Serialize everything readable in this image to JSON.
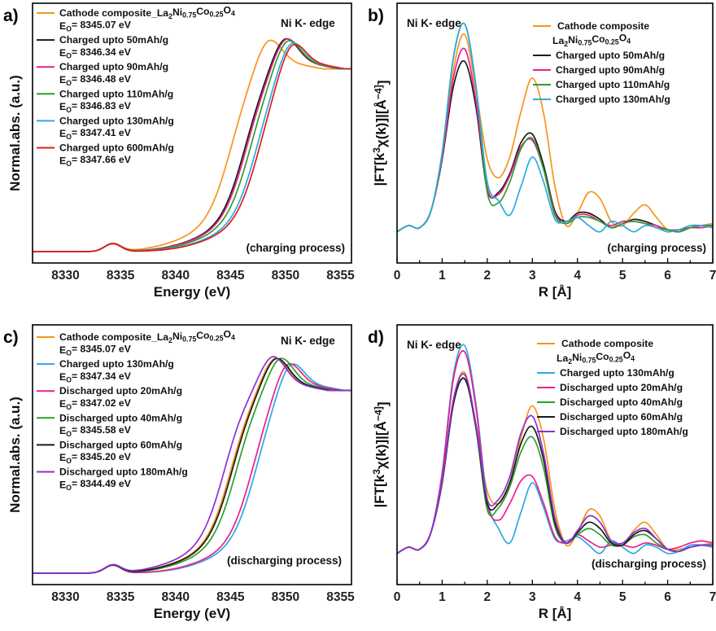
{
  "chart_data": [
    {
      "type": "line",
      "panel": "a)",
      "edge_label": "Ni K- edge",
      "annotation": "(charging process)",
      "xlabel": "Energy (eV)",
      "ylabel": "Normal.abs. (a.u.)",
      "xlim": [
        8327,
        8356
      ],
      "x_ticks": [
        8330,
        8335,
        8340,
        8345,
        8350,
        8355
      ],
      "ylim": [
        -0.05,
        1.1
      ],
      "legend_position": "top-left",
      "series": [
        {
          "name": "Cathode composite_La2Ni0.75Co0.25O4",
          "e0": "EO= 8345.07 eV",
          "color": "#f7941d",
          "edge": 8345.07,
          "peak": 8348.4,
          "prepeak": 1.0
        },
        {
          "name": "Charged upto 50mAh/g",
          "e0": "EO= 8346.34 eV",
          "color": "#1a1a1a",
          "edge": 8346.34,
          "peak": 8349.9,
          "prepeak": 1.0
        },
        {
          "name": "Charged upto 90mAh/g",
          "e0": "EO= 8346.48 eV",
          "color": "#ec1f8c",
          "edge": 8346.48,
          "peak": 8350.0,
          "prepeak": 1.0
        },
        {
          "name": "Charged upto 110mAh/g",
          "e0": "EO= 8346.83 eV",
          "color": "#2ca02c",
          "edge": 8346.83,
          "peak": 8350.1,
          "prepeak": 1.0
        },
        {
          "name": "Charged upto 130mAh/g",
          "e0": "EO= 8347.41 eV",
          "color": "#29abe2",
          "edge": 8347.41,
          "peak": 8350.4,
          "prepeak": 1.0
        },
        {
          "name": "Charged upto 600mAh/g",
          "e0": "EO= 8347.66 eV",
          "color": "#e31a1c",
          "edge": 8347.66,
          "peak": 8350.5,
          "prepeak": 1.0
        }
      ]
    },
    {
      "type": "line",
      "panel": "b)",
      "edge_label": "Ni K- edge",
      "annotation": "(charging process)",
      "xlabel": "R [Å]",
      "ylabel": "|FT[k3χ(k)]|[Å−4]",
      "xlim": [
        0,
        7
      ],
      "x_ticks": [
        0,
        1,
        2,
        3,
        4,
        5,
        6,
        7
      ],
      "ylim": [
        -0.15,
        1.1
      ],
      "legend_position": "top-right",
      "series": [
        {
          "name": "Cathode composite La2Ni0.75Co0.25O4",
          "color": "#f7941d",
          "values": [
            0.0,
            0.03,
            0.02,
            0.1,
            0.35,
            0.78,
            0.95,
            0.68,
            0.35,
            0.26,
            0.36,
            0.58,
            0.74,
            0.57,
            0.22,
            0.03,
            0.09,
            0.19,
            0.16,
            0.05,
            0.03,
            0.09,
            0.13,
            0.07,
            0.01,
            0.01,
            0.02,
            0.03,
            0.04
          ]
        },
        {
          "name": "Charged upto 50mAh/g",
          "color": "#1a1a1a",
          "values": [
            0.0,
            0.03,
            0.02,
            0.1,
            0.35,
            0.7,
            0.82,
            0.6,
            0.2,
            0.19,
            0.28,
            0.43,
            0.47,
            0.32,
            0.1,
            0.05,
            0.09,
            0.09,
            0.06,
            0.02,
            0.04,
            0.06,
            0.05,
            0.03,
            0.01,
            0.0,
            0.02,
            0.03,
            0.03
          ]
        },
        {
          "name": "Charged upto 90mAh/g",
          "color": "#ec1f8c",
          "values": [
            0.0,
            0.03,
            0.02,
            0.1,
            0.36,
            0.74,
            0.88,
            0.63,
            0.21,
            0.18,
            0.27,
            0.41,
            0.44,
            0.3,
            0.09,
            0.04,
            0.08,
            0.08,
            0.05,
            0.03,
            0.05,
            0.05,
            0.04,
            0.03,
            0.01,
            0.01,
            0.02,
            0.02,
            0.03
          ]
        },
        {
          "name": "Charged upto 110mAh/g",
          "color": "#2ca02c",
          "values": [
            0.0,
            0.03,
            0.02,
            0.1,
            0.38,
            0.84,
            1.0,
            0.7,
            0.19,
            0.14,
            0.24,
            0.4,
            0.45,
            0.3,
            0.08,
            0.04,
            0.07,
            0.07,
            0.05,
            0.02,
            0.04,
            0.05,
            0.04,
            0.02,
            0.01,
            0.0,
            0.02,
            0.03,
            0.03
          ]
        },
        {
          "name": "Charged upto 130mAh/g",
          "color": "#29abe2",
          "values": [
            0.0,
            0.03,
            0.02,
            0.1,
            0.38,
            0.84,
            1.0,
            0.7,
            0.24,
            0.15,
            0.08,
            0.22,
            0.36,
            0.24,
            0.06,
            0.05,
            0.07,
            0.03,
            0.0,
            0.05,
            0.03,
            0.0,
            0.03,
            0.02,
            0.0,
            0.01,
            0.03,
            0.03,
            0.02
          ]
        }
      ]
    },
    {
      "type": "line",
      "panel": "c)",
      "edge_label": "Ni K- edge",
      "annotation": "(discharging process)",
      "xlabel": "Energy (eV)",
      "ylabel": "Normal.abs. (a.u.)",
      "xlim": [
        8327,
        8356
      ],
      "x_ticks": [
        8330,
        8335,
        8340,
        8345,
        8350,
        8355
      ],
      "ylim": [
        -0.05,
        1.1
      ],
      "legend_position": "top-left",
      "series": [
        {
          "name": "Cathode composite_La2Ni0.75Co0.25O4",
          "e0": "EO= 8345.07 eV",
          "color": "#f7941d",
          "edge": 8345.07,
          "peak": 8349.0,
          "prepeak": 1.0
        },
        {
          "name": "Charged upto 130mAh/g",
          "e0": "EO= 8347.34 eV",
          "color": "#29abe2",
          "edge": 8347.34,
          "peak": 8350.4,
          "prepeak": 1.0
        },
        {
          "name": "Discharged upto 20mAh/g",
          "e0": "EO= 8347.02 eV",
          "color": "#ec1f8c",
          "edge": 8347.02,
          "peak": 8350.1,
          "prepeak": 1.0
        },
        {
          "name": "Discharged upto 40mAh/g",
          "e0": "EO= 8345.58 eV",
          "color": "#2ca02c",
          "edge": 8345.58,
          "peak": 8349.5,
          "prepeak": 1.0
        },
        {
          "name": "Discharged upto 60mAh/g",
          "e0": "EO= 8345.20 eV",
          "color": "#1a1a1a",
          "edge": 8345.2,
          "peak": 8349.1,
          "prepeak": 1.0
        },
        {
          "name": "Discharged upto 180mAh/g",
          "e0": "EO= 8344.49 eV",
          "color": "#8e2fd6",
          "edge": 8344.49,
          "peak": 8348.8,
          "prepeak": 1.0
        }
      ]
    },
    {
      "type": "line",
      "panel": "d)",
      "edge_label": "Ni K- edge",
      "annotation": "(discharging process)",
      "xlabel": "R [Å]",
      "ylabel": "|FT[k3χ(k)]|[Å−4]",
      "xlim": [
        0,
        7
      ],
      "x_ticks": [
        0,
        1,
        2,
        3,
        4,
        5,
        6,
        7
      ],
      "ylim": [
        -0.15,
        1.1
      ],
      "legend_position": "top-right",
      "series": [
        {
          "name": "Cathode composite La2Ni0.75Co0.25O4",
          "color": "#f7941d",
          "values": [
            0.0,
            0.03,
            0.02,
            0.1,
            0.35,
            0.74,
            0.87,
            0.62,
            0.3,
            0.24,
            0.34,
            0.56,
            0.71,
            0.55,
            0.21,
            0.04,
            0.1,
            0.21,
            0.18,
            0.06,
            0.04,
            0.11,
            0.15,
            0.09,
            0.02,
            0.02,
            0.03,
            0.04,
            0.05
          ]
        },
        {
          "name": "Charged upto 130mAh/g",
          "color": "#29abe2",
          "values": [
            0.0,
            0.03,
            0.02,
            0.1,
            0.39,
            0.86,
            1.0,
            0.72,
            0.26,
            0.12,
            0.05,
            0.2,
            0.34,
            0.22,
            0.07,
            0.06,
            0.08,
            0.04,
            0.0,
            0.06,
            0.03,
            0.0,
            0.04,
            0.03,
            0.0,
            0.01,
            0.04,
            0.04,
            0.03
          ]
        },
        {
          "name": "Discharged upto 20mAh/g",
          "color": "#ec1f8c",
          "values": [
            0.0,
            0.03,
            0.02,
            0.1,
            0.38,
            0.84,
            0.97,
            0.7,
            0.24,
            0.16,
            0.24,
            0.35,
            0.37,
            0.24,
            0.08,
            0.05,
            0.09,
            0.06,
            0.03,
            0.04,
            0.04,
            0.03,
            0.05,
            0.04,
            0.02,
            0.03,
            0.05,
            0.06,
            0.05
          ]
        },
        {
          "name": "Discharged upto 40mAh/g",
          "color": "#2ca02c",
          "values": [
            0.0,
            0.03,
            0.02,
            0.1,
            0.34,
            0.72,
            0.84,
            0.6,
            0.21,
            0.22,
            0.32,
            0.49,
            0.56,
            0.41,
            0.13,
            0.05,
            0.09,
            0.12,
            0.09,
            0.04,
            0.04,
            0.08,
            0.09,
            0.05,
            0.02,
            0.01,
            0.03,
            0.04,
            0.04
          ]
        },
        {
          "name": "Discharged upto 60mAh/g",
          "color": "#1a1a1a",
          "values": [
            0.0,
            0.03,
            0.02,
            0.1,
            0.34,
            0.72,
            0.84,
            0.61,
            0.24,
            0.24,
            0.34,
            0.53,
            0.61,
            0.45,
            0.15,
            0.05,
            0.1,
            0.15,
            0.12,
            0.05,
            0.04,
            0.09,
            0.11,
            0.07,
            0.02,
            0.01,
            0.03,
            0.04,
            0.04
          ]
        },
        {
          "name": "Discharged upto 180mAh/g",
          "color": "#8e2fd6",
          "values": [
            0.0,
            0.03,
            0.02,
            0.1,
            0.35,
            0.74,
            0.86,
            0.62,
            0.26,
            0.26,
            0.37,
            0.58,
            0.66,
            0.48,
            0.17,
            0.05,
            0.11,
            0.18,
            0.15,
            0.06,
            0.05,
            0.1,
            0.12,
            0.07,
            0.02,
            0.01,
            0.03,
            0.04,
            0.04
          ]
        }
      ]
    }
  ]
}
